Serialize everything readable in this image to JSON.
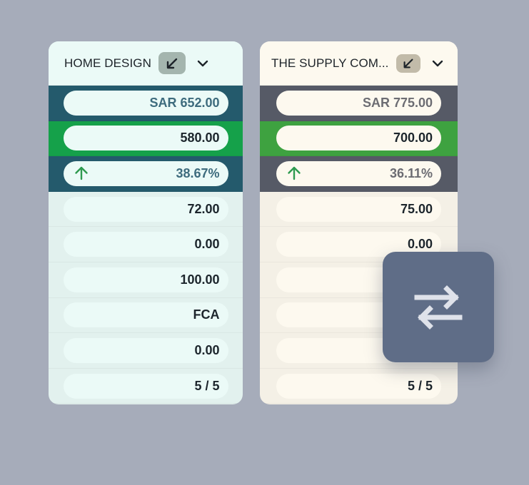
{
  "colors": {
    "background": "#a6acba",
    "left_accent": "#245a6c",
    "left_total": "#15a14a",
    "right_accent": "#565a66",
    "right_total": "#3ea240",
    "trend_up": "#2e9a4f",
    "swap_button": "#5f6d87"
  },
  "left_card": {
    "vendor": "HOME DESIGN",
    "rows": {
      "price": "SAR 652.00",
      "total": "580.00",
      "difference": "38.67%",
      "row4": "72.00",
      "row5": "0.00",
      "row6": "100.00",
      "incoterm": "FCA",
      "row8": "0.00",
      "score": "5 / 5"
    }
  },
  "right_card": {
    "vendor": "THE SUPPLY COM...",
    "rows": {
      "price": "SAR 775.00",
      "total": "700.00",
      "difference": "36.11%",
      "row4": "75.00",
      "row5": "0.00",
      "row6": "",
      "incoterm": "",
      "row8": "",
      "score": "5 / 5"
    }
  },
  "icons": {
    "collapse": "arrow-down-left-icon",
    "dropdown": "chevron-down-icon",
    "trend": "arrow-up-icon",
    "swap": "swap-arrows-icon"
  }
}
